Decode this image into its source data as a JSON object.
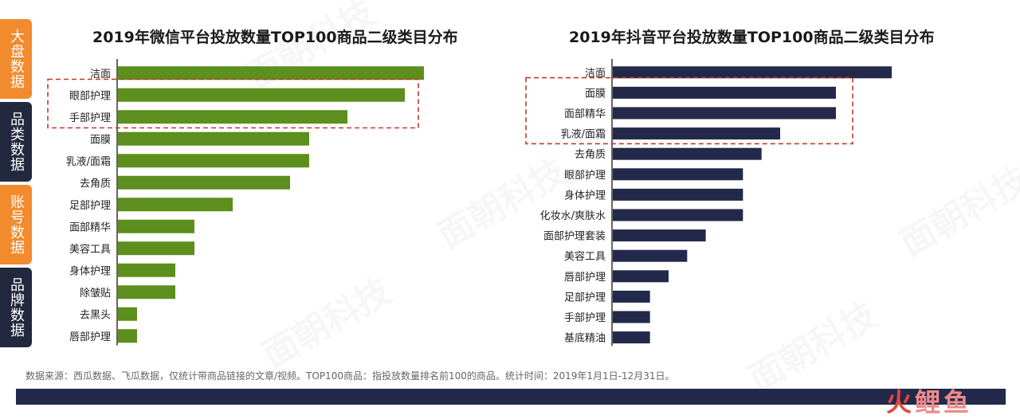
{
  "side_tabs": [
    {
      "label": "大盘数据",
      "color": "#f28a2e"
    },
    {
      "label": "品类数据",
      "color": "#22293f"
    },
    {
      "label": "账号数据",
      "color": "#f28a2e"
    },
    {
      "label": "品牌数据",
      "color": "#22293f"
    }
  ],
  "footnote": "数据来源：西瓜数据、飞瓜数据，仅统计带商品链接的文章/视频。TOP100商品：指投放数量排名前100的商品。统计时间：2019年1月1日-12月31日。",
  "watermark": "面朝科技",
  "logo": {
    "part1": "火",
    "part2": "鲤鱼"
  },
  "colors": {
    "wechat_bar": "#5c8f1d",
    "douyin_bar": "#22294a",
    "highlight_border": "#c0392b",
    "bottom_bar": "#22294a"
  },
  "chart_data": [
    {
      "type": "bar",
      "orientation": "horizontal",
      "title": "2019年微信平台投放数量TOP100商品二级类目分布",
      "categories": [
        "洁面",
        "眼部护理",
        "手部护理",
        "面膜",
        "乳液/面霜",
        "去角质",
        "足部护理",
        "面部精华",
        "美容工具",
        "身体护理",
        "除皱贴",
        "去黑头",
        "唇部护理"
      ],
      "values": [
        16,
        15,
        12,
        10,
        10,
        9,
        6,
        4,
        4,
        3,
        3,
        1,
        1
      ],
      "xlim": [
        0,
        16
      ],
      "highlighted": [
        "眼部护理",
        "手部护理"
      ],
      "grid": false
    },
    {
      "type": "bar",
      "orientation": "horizontal",
      "title": "2019年抖音平台投放数量TOP100商品二级类目分布",
      "categories": [
        "洁面",
        "面膜",
        "面部精华",
        "乳液/面霜",
        "去角质",
        "眼部护理",
        "身体护理",
        "化妆水/爽肤水",
        "面部护理套装",
        "美容工具",
        "唇部护理",
        "足部护理",
        "手部护理",
        "基底精油"
      ],
      "values": [
        15,
        12,
        12,
        9,
        8,
        7,
        7,
        7,
        5,
        4,
        3,
        2,
        2,
        2
      ],
      "xlim": [
        0,
        15
      ],
      "highlighted": [
        "面膜",
        "面部精华",
        "乳液/面霜"
      ],
      "grid": false
    }
  ]
}
